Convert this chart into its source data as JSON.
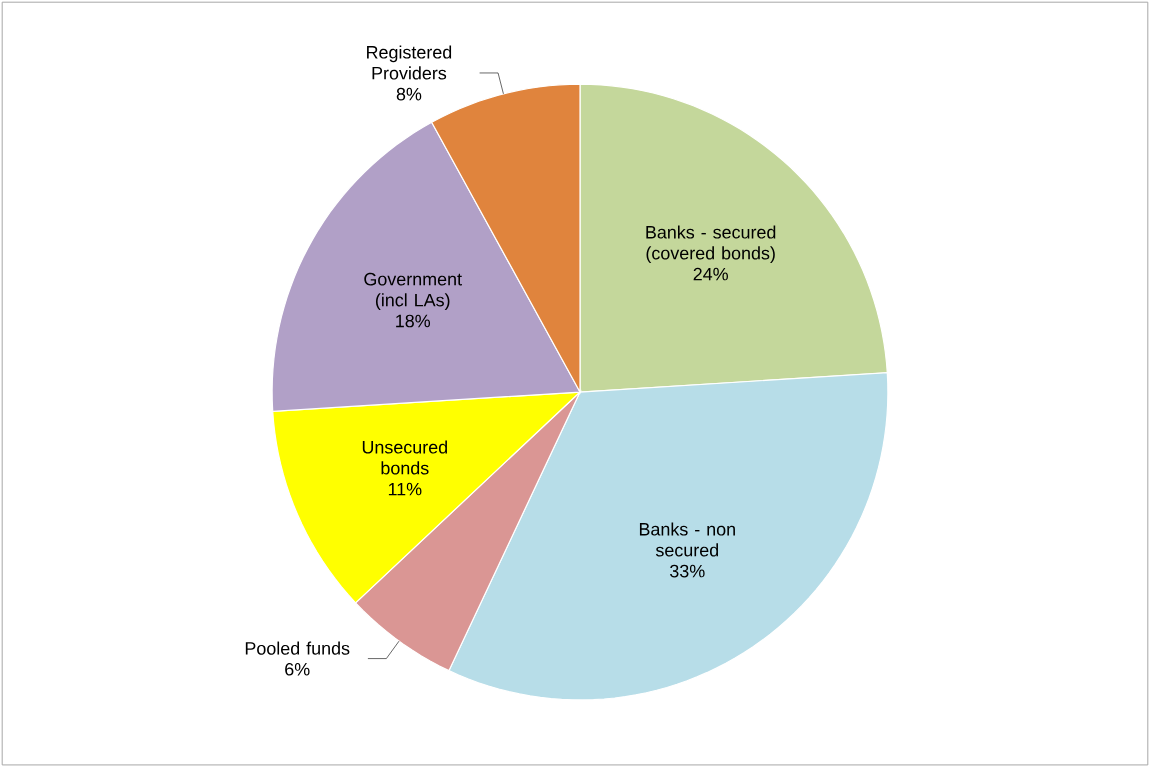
{
  "chart_data": {
    "type": "pie",
    "categories": [
      "Banks - secured (covered bonds)",
      "Banks - non secured",
      "Pooled funds",
      "Unsecured bonds",
      "Government (incl LAs)",
      "Registered Providers"
    ],
    "values": [
      24,
      33,
      6,
      11,
      18,
      8
    ],
    "value_labels": [
      "24%",
      "33%",
      "6%",
      "11%",
      "18%",
      "8%"
    ],
    "colors": [
      "#c4d79b",
      "#b7dde8",
      "#da9694",
      "#ffff00",
      "#b1a0c7",
      "#e0843d"
    ]
  }
}
